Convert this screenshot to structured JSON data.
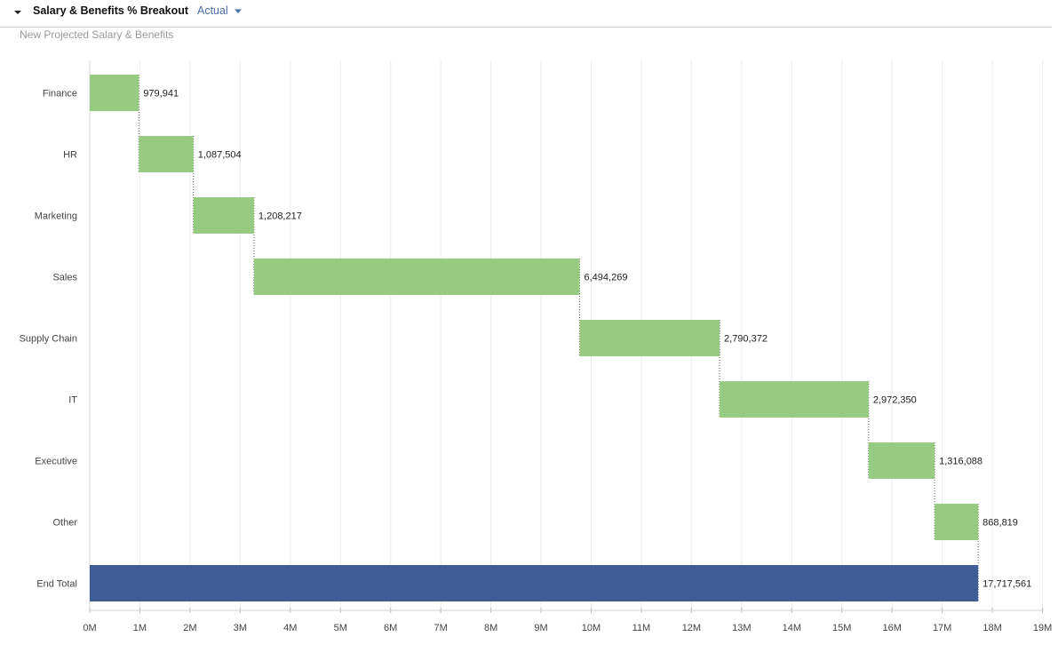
{
  "header": {
    "title": "Salary & Benefits % Breakout",
    "view_selected": "Actual",
    "subtitle": "New Projected Salary & Benefits"
  },
  "icons": {
    "collapse": "caret-down-icon",
    "dropdown": "caret-down-icon"
  },
  "colors": {
    "increase": "#98cb82",
    "total": "#3f5d94",
    "view_select": "#4a6fa5"
  },
  "chart_data": {
    "type": "waterfall",
    "orientation": "horizontal",
    "categories": [
      "Finance",
      "HR",
      "Marketing",
      "Sales",
      "Supply Chain",
      "IT",
      "Executive",
      "Other",
      "End Total"
    ],
    "values": [
      979941,
      1087504,
      1208217,
      6494269,
      2790372,
      2972350,
      1316088,
      868819,
      17717561
    ],
    "value_labels": [
      "979,941",
      "1,087,504",
      "1,208,217",
      "6,494,269",
      "2,790,372",
      "2,972,350",
      "1,316,088",
      "868,819",
      "17,717,561"
    ],
    "is_total": [
      false,
      false,
      false,
      false,
      false,
      false,
      false,
      false,
      true
    ],
    "x_ticks": [
      "0M",
      "1M",
      "2M",
      "3M",
      "4M",
      "5M",
      "6M",
      "7M",
      "8M",
      "9M",
      "10M",
      "11M",
      "12M",
      "13M",
      "14M",
      "15M",
      "16M",
      "17M",
      "18M",
      "19M"
    ],
    "xlim": [
      0,
      19000000
    ],
    "grid": true,
    "legend": false
  }
}
